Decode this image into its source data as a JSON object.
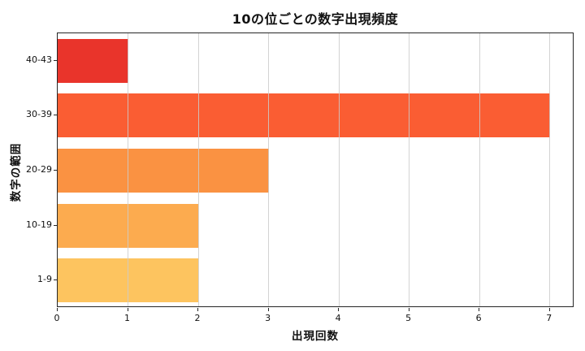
{
  "chart_data": {
    "type": "bar",
    "orientation": "horizontal",
    "title": "10の位ごとの数字出現頻度",
    "xlabel": "出現回数",
    "ylabel": "数字の範囲",
    "categories": [
      "40-43",
      "30-39",
      "20-29",
      "10-19",
      "1-9"
    ],
    "values": [
      1,
      7,
      3,
      2,
      2
    ],
    "bar_colors": [
      "#e9342b",
      "#fa5d33",
      "#fa9242",
      "#fcab4f",
      "#fdc45f"
    ],
    "x_ticks": [
      0,
      1,
      2,
      3,
      4,
      5,
      6,
      7
    ],
    "xlim": [
      0,
      7.35
    ],
    "grid": "vertical",
    "gridline_color": "#cbcbcb",
    "spine_color": "#262626",
    "background_color": "#ffffff",
    "bar_height_fraction": 0.8,
    "legend": "none"
  }
}
